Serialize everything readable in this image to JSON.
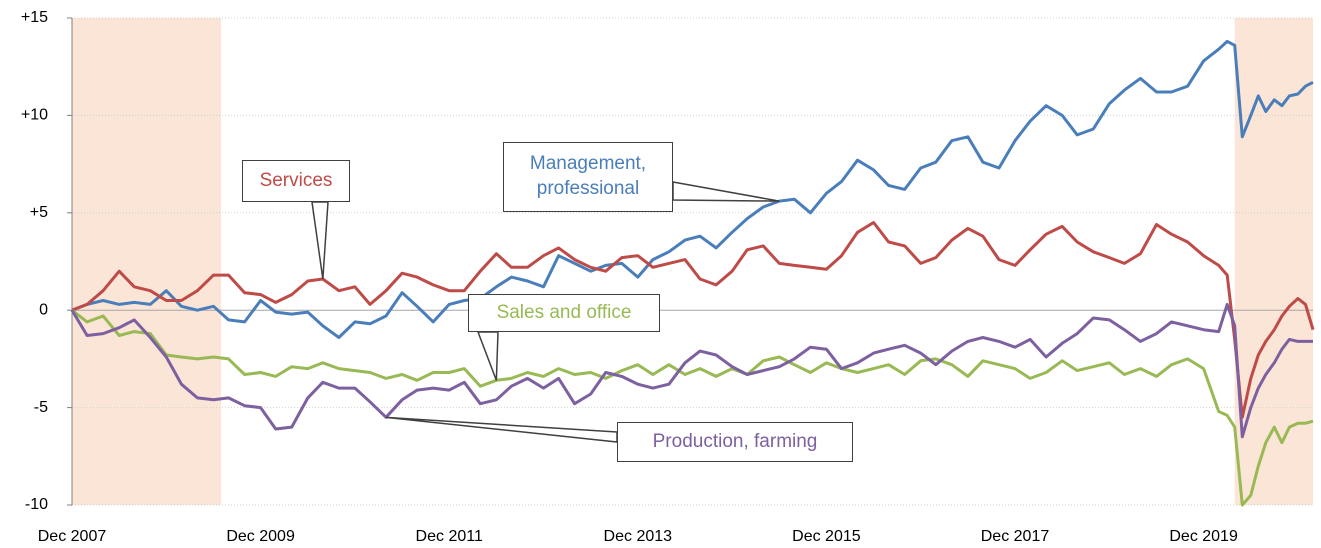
{
  "chart_data": {
    "type": "line",
    "x": [
      2007.92,
      2008.08,
      2008.25,
      2008.42,
      2008.58,
      2008.75,
      2008.92,
      2009.08,
      2009.25,
      2009.42,
      2009.58,
      2009.75,
      2009.92,
      2010.08,
      2010.25,
      2010.42,
      2010.58,
      2010.75,
      2010.92,
      2011.08,
      2011.25,
      2011.42,
      2011.58,
      2011.75,
      2011.92,
      2012.08,
      2012.25,
      2012.42,
      2012.58,
      2012.75,
      2012.92,
      2013.08,
      2013.25,
      2013.42,
      2013.58,
      2013.75,
      2013.92,
      2014.08,
      2014.25,
      2014.42,
      2014.58,
      2014.75,
      2014.92,
      2015.08,
      2015.25,
      2015.42,
      2015.58,
      2015.75,
      2015.92,
      2016.08,
      2016.25,
      2016.42,
      2016.58,
      2016.75,
      2016.92,
      2017.08,
      2017.25,
      2017.42,
      2017.58,
      2017.75,
      2017.92,
      2018.08,
      2018.25,
      2018.42,
      2018.58,
      2018.75,
      2018.92,
      2019.08,
      2019.25,
      2019.42,
      2019.58,
      2019.75,
      2019.92,
      2020.08,
      2020.17,
      2020.25,
      2020.33,
      2020.42,
      2020.5,
      2020.58,
      2020.67,
      2020.75,
      2020.83,
      2020.92,
      2021.0,
      2021.08
    ],
    "series": [
      {
        "name": "Management, professional",
        "color": "#4a7ebb",
        "values": [
          0,
          0.3,
          0.5,
          0.3,
          0.4,
          0.3,
          1.0,
          0.2,
          0,
          0.2,
          -0.5,
          -0.6,
          0.5,
          -0.1,
          -0.2,
          -0.1,
          -0.8,
          -1.4,
          -0.6,
          -0.7,
          -0.3,
          0.9,
          0.2,
          -0.6,
          0.3,
          0.5,
          0.6,
          1.2,
          1.7,
          1.5,
          1.2,
          2.8,
          2.4,
          2.0,
          2.3,
          2.4,
          1.7,
          2.6,
          3.0,
          3.6,
          3.8,
          3.2,
          4.0,
          4.7,
          5.3,
          5.6,
          5.7,
          5.0,
          6.0,
          6.6,
          7.7,
          7.2,
          6.4,
          6.2,
          7.3,
          7.6,
          8.7,
          8.9,
          7.6,
          7.3,
          8.7,
          9.7,
          10.5,
          10.0,
          9.0,
          9.3,
          10.6,
          11.3,
          11.9,
          11.2,
          11.2,
          11.5,
          12.8,
          13.4,
          13.8,
          13.6,
          8.9,
          10.0,
          11.0,
          10.2,
          10.8,
          10.5,
          11.0,
          11.1,
          11.5,
          11.7
        ]
      },
      {
        "name": "Services",
        "color": "#be4b48",
        "values": [
          0,
          0.3,
          1.0,
          2.0,
          1.2,
          1.0,
          0.5,
          0.5,
          1.0,
          1.8,
          1.8,
          0.9,
          0.8,
          0.4,
          0.8,
          1.5,
          1.6,
          1.0,
          1.2,
          0.3,
          1.0,
          1.9,
          1.7,
          1.3,
          1.0,
          1.0,
          2.0,
          2.9,
          2.2,
          2.2,
          2.8,
          3.2,
          2.6,
          2.2,
          2.0,
          2.7,
          2.8,
          2.2,
          2.4,
          2.6,
          1.6,
          1.3,
          2.0,
          3.1,
          3.3,
          2.4,
          2.3,
          2.2,
          2.1,
          2.8,
          4.0,
          4.5,
          3.5,
          3.3,
          2.4,
          2.7,
          3.6,
          4.2,
          3.8,
          2.6,
          2.3,
          3.1,
          3.9,
          4.3,
          3.5,
          3.0,
          2.7,
          2.4,
          2.9,
          4.4,
          3.9,
          3.5,
          2.8,
          2.3,
          1.8,
          -1.5,
          -5.5,
          -3.5,
          -2.3,
          -1.6,
          -1.0,
          -0.3,
          0.2,
          0.6,
          0.3,
          -1.0
        ]
      },
      {
        "name": "Sales and office",
        "color": "#98b954",
        "values": [
          0,
          -0.6,
          -0.3,
          -1.3,
          -1.1,
          -1.2,
          -2.3,
          -2.4,
          -2.5,
          -2.4,
          -2.5,
          -3.3,
          -3.2,
          -3.4,
          -2.9,
          -3.0,
          -2.7,
          -3.0,
          -3.1,
          -3.2,
          -3.5,
          -3.3,
          -3.6,
          -3.2,
          -3.2,
          -3.0,
          -3.9,
          -3.6,
          -3.5,
          -3.2,
          -3.4,
          -3.0,
          -3.3,
          -3.2,
          -3.5,
          -3.1,
          -2.8,
          -3.3,
          -2.8,
          -3.3,
          -3.0,
          -3.4,
          -3.0,
          -3.3,
          -2.6,
          -2.4,
          -2.8,
          -3.2,
          -2.7,
          -3.0,
          -3.2,
          -3.0,
          -2.8,
          -3.3,
          -2.6,
          -2.5,
          -2.8,
          -3.4,
          -2.6,
          -2.8,
          -3.0,
          -3.5,
          -3.2,
          -2.6,
          -3.1,
          -2.9,
          -2.7,
          -3.3,
          -3.0,
          -3.4,
          -2.8,
          -2.5,
          -3.0,
          -5.2,
          -5.4,
          -6.0,
          -10.0,
          -9.5,
          -8.0,
          -6.8,
          -6.0,
          -6.8,
          -6.0,
          -5.8,
          -5.8,
          -5.7
        ]
      },
      {
        "name": "Production, farming",
        "color": "#7d60a0",
        "values": [
          0,
          -1.3,
          -1.2,
          -0.9,
          -0.5,
          -1.4,
          -2.4,
          -3.8,
          -4.5,
          -4.6,
          -4.5,
          -4.9,
          -5.0,
          -6.1,
          -6.0,
          -4.5,
          -3.7,
          -4.0,
          -4.0,
          -4.7,
          -5.5,
          -4.6,
          -4.1,
          -4.0,
          -4.1,
          -3.7,
          -4.8,
          -4.6,
          -3.9,
          -3.5,
          -4.0,
          -3.5,
          -4.8,
          -4.3,
          -3.2,
          -3.4,
          -3.8,
          -4.0,
          -3.8,
          -2.7,
          -2.1,
          -2.3,
          -2.9,
          -3.3,
          -3.1,
          -2.9,
          -2.5,
          -1.9,
          -2.0,
          -3.0,
          -2.7,
          -2.2,
          -2.0,
          -1.8,
          -2.2,
          -2.8,
          -2.1,
          -1.6,
          -1.4,
          -1.6,
          -1.9,
          -1.5,
          -2.4,
          -1.7,
          -1.2,
          -0.4,
          -0.5,
          -1.0,
          -1.6,
          -1.2,
          -0.6,
          -0.8,
          -1.0,
          -1.1,
          0.3,
          -0.8,
          -6.5,
          -5.0,
          -4.0,
          -3.3,
          -2.7,
          -2.0,
          -1.5,
          -1.6,
          -1.6,
          -1.6
        ]
      }
    ],
    "xlim": [
      2007.92,
      2021.08
    ],
    "xticks": [
      {
        "value": 2007.92,
        "label": "Dec 2007"
      },
      {
        "value": 2009.92,
        "label": "Dec 2009"
      },
      {
        "value": 2011.92,
        "label": "Dec 2011"
      },
      {
        "value": 2013.92,
        "label": "Dec 2013"
      },
      {
        "value": 2015.92,
        "label": "Dec 2015"
      },
      {
        "value": 2017.92,
        "label": "Dec 2017"
      },
      {
        "value": 2019.92,
        "label": "Dec 2019"
      }
    ],
    "ylim": [
      -10,
      15
    ],
    "yticks": [
      -10,
      -5,
      0,
      {
        "value": 5,
        "label": "+5"
      },
      {
        "value": 10,
        "label": "+10"
      },
      {
        "value": 15,
        "label": "+15"
      }
    ],
    "grid": true,
    "recessions": [
      [
        2007.92,
        2009.5
      ],
      [
        2020.25,
        2021.08
      ]
    ],
    "recession_color": "#fbe5d6"
  }
}
